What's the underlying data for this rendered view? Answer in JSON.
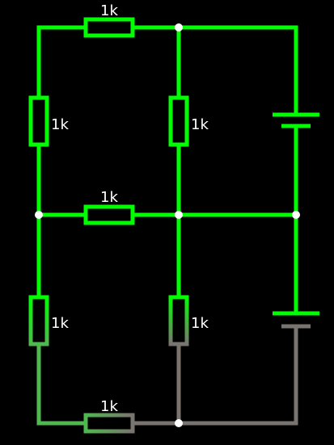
{
  "circuit": {
    "background_color": "#000000",
    "colors": {
      "bright_green": "#00ff00",
      "mid_green": "#4fb84f",
      "gray": "#7a7470",
      "node": "#ffffff",
      "label": "#ffffff"
    },
    "resistors": [
      {
        "id": "r-top",
        "label": "1k"
      },
      {
        "id": "r-left-upper",
        "label": "1k"
      },
      {
        "id": "r-center-upper",
        "label": "1k"
      },
      {
        "id": "r-middle",
        "label": "1k"
      },
      {
        "id": "r-left-lower",
        "label": "1k"
      },
      {
        "id": "r-center-lower",
        "label": "1k"
      },
      {
        "id": "r-bottom",
        "label": "1k"
      }
    ],
    "batteries": [
      {
        "id": "battery-upper"
      },
      {
        "id": "battery-lower"
      }
    ]
  }
}
